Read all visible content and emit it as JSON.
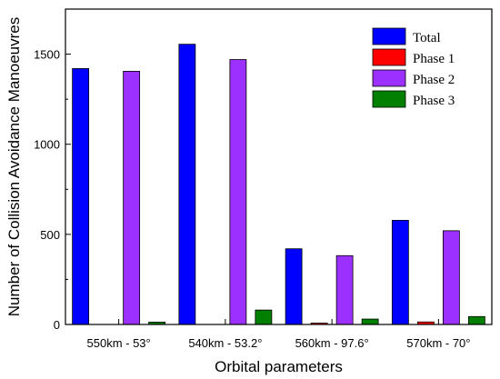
{
  "chart_data": {
    "type": "bar",
    "title": "",
    "xlabel": "Orbital parameters",
    "ylabel": "Number of Collision Avoidance Manoeuvres",
    "categories": [
      "550km - 53°",
      "540km - 53.2°",
      "560km - 97.6°",
      "570km - 70°"
    ],
    "ylim": [
      0,
      1750
    ],
    "yticks": [
      0,
      500,
      1000,
      1500
    ],
    "legend_position": "top-right",
    "grid": false,
    "series": [
      {
        "name": "Total",
        "color": "#0000ff",
        "values": [
          1420,
          1555,
          420,
          578
        ]
      },
      {
        "name": "Phase 1",
        "color": "#ff0000",
        "values": [
          0,
          0,
          8,
          14
        ]
      },
      {
        "name": "Phase 2",
        "color": "#9b30ff",
        "values": [
          1405,
          1470,
          382,
          520
        ]
      },
      {
        "name": "Phase 3",
        "color": "#007f00",
        "values": [
          13,
          80,
          30,
          44
        ]
      }
    ]
  }
}
